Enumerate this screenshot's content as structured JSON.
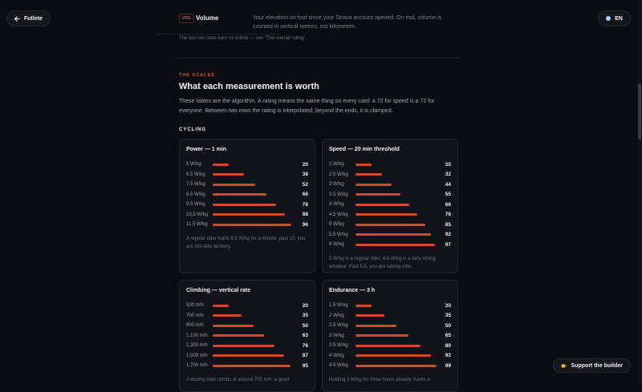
{
  "nav": {
    "back_label": "Futlete",
    "lang_label": "EN",
    "support_label": "Support the builder",
    "support_icon": "coffee-icon"
  },
  "volume_row": {
    "tag": "VOL",
    "name": "Volume",
    "description": "Your elevation on foot since your Strava account opened. On trail, volume is counted in vertical metres, not kilometres."
  },
  "footnote": "The last two rows earn no points — see “The overall rating”.",
  "scales": {
    "eyebrow": "THE SCALES",
    "title": "What each measurement is worth",
    "intro": "These tables are the algorithm. A rating means the same thing on every card: a 72 for speed is a 72 for everyone. Between two rows the rating is interpolated; beyond the ends, it is clamped.",
    "section_label": "CYCLING"
  },
  "accent_color": "#e4572e",
  "cards": [
    {
      "title": "Power — 1 min",
      "rows": [
        {
          "label": "5 W/kg",
          "value": 20
        },
        {
          "label": "6.5 W/kg",
          "value": 38
        },
        {
          "label": "7.5 W/kg",
          "value": 52
        },
        {
          "label": "8.5 W/kg",
          "value": 66
        },
        {
          "label": "9.5 W/kg",
          "value": 78
        },
        {
          "label": "10.5 W/kg",
          "value": 88
        },
        {
          "label": "11.5 W/kg",
          "value": 96
        }
      ],
      "note": "A regular rider holds 6.5 W/kg for a minute; past 10, you are into elite territory."
    },
    {
      "title": "Speed — 20 min threshold",
      "rows": [
        {
          "label": "2 W/kg",
          "value": 20
        },
        {
          "label": "2.5 W/kg",
          "value": 32
        },
        {
          "label": "3 W/kg",
          "value": 44
        },
        {
          "label": "3.5 W/kg",
          "value": 55
        },
        {
          "label": "4 W/kg",
          "value": 66
        },
        {
          "label": "4.5 W/kg",
          "value": 76
        },
        {
          "label": "5 W/kg",
          "value": 85
        },
        {
          "label": "5.5 W/kg",
          "value": 92
        },
        {
          "label": "6 W/kg",
          "value": 97
        }
      ],
      "note": "3 W/kg is a regular rider. 4.5 W/kg is a very strong amateur. Past 5.5, you are talking elite."
    },
    {
      "title": "Climbing — vertical rate",
      "rows": [
        {
          "label": "500 m/h",
          "value": 20
        },
        {
          "label": "700 m/h",
          "value": 35
        },
        {
          "label": "900 m/h",
          "value": 50
        },
        {
          "label": "1,100 m/h",
          "value": 63
        },
        {
          "label": "1,300 m/h",
          "value": 76
        },
        {
          "label": "1,500 m/h",
          "value": 87
        },
        {
          "label": "1,700 m/h",
          "value": 95
        }
      ],
      "note": "A touring rider climbs at around 700 m/h, a good"
    },
    {
      "title": "Endurance — 3 h",
      "rows": [
        {
          "label": "1.5 W/kg",
          "value": 20
        },
        {
          "label": "2 W/kg",
          "value": 35
        },
        {
          "label": "2.5 W/kg",
          "value": 50
        },
        {
          "label": "3 W/kg",
          "value": 65
        },
        {
          "label": "3.5 W/kg",
          "value": 80
        },
        {
          "label": "4 W/kg",
          "value": 92
        },
        {
          "label": "4.5 W/kg",
          "value": 99
        }
      ],
      "note": "Holding 3 W/kg for three hours already marks a"
    }
  ]
}
